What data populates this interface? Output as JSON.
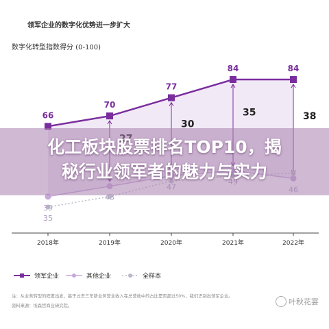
{
  "chart_data": {
    "type": "line",
    "title": "领军企业的数字化优势进一步扩大",
    "subtitle": "数字化转型指数得分 (0-100)",
    "categories": [
      "2018年",
      "2019年",
      "2020年",
      "2021年",
      "2022年"
    ],
    "series": [
      {
        "name": "领军企业",
        "values": [
          66,
          70,
          77,
          84,
          84
        ],
        "color": "#7a2e9e",
        "labels": [
          "66",
          "70",
          "77",
          "84",
          "84"
        ]
      },
      {
        "name": "其他企业",
        "values": [
          39,
          43,
          47,
          49,
          46
        ],
        "color": "#c8a8dc",
        "labels": [
          "39",
          "43",
          "47",
          "49",
          "46"
        ]
      },
      {
        "name": "全样本",
        "values": [
          35,
          39,
          45,
          47,
          48
        ],
        "color": "#b8b8c8",
        "labels": [
          "35",
          "",
          "",
          "",
          ""
        ]
      }
    ],
    "gaps": [
      "",
      "27",
      "30",
      "35",
      "38"
    ],
    "gap_color": "#7a2e9e",
    "note": "注：从业务转型的程度出发，基于过去三年新业务营业收入在总营收中的占比是否超过50%，我们识别出领军企业。",
    "source": "资料来源：埃森哲商业研究院。"
  },
  "overlay": {
    "headline_line1": "化工板块股票排名TOP10，揭",
    "headline_line2": "秘行业领军者的魅力与实力",
    "watermark": "叶秋花宴",
    "tint": "#aa82af"
  }
}
